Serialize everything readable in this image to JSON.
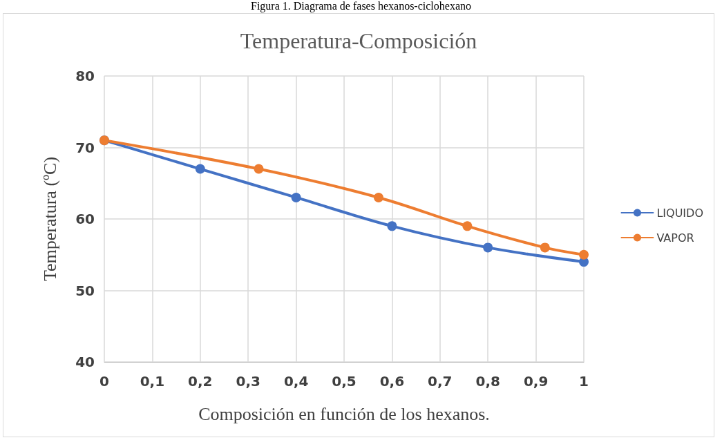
{
  "chart_data": {
    "type": "line",
    "title": "Temperatura-Composición",
    "xlabel": "Composición en función de los hexanos.",
    "ylabel": "Temperatura (ºC)",
    "annotations": [
      "Figura 1. Diagrama de fases hexanos-ciclohexano"
    ],
    "series": [
      {
        "name": "LIQUIDO",
        "color": "#4472c4",
        "x": [
          0,
          0.2,
          0.4,
          0.6,
          0.8,
          1
        ],
        "values": [
          71,
          67,
          63,
          59,
          56,
          54
        ]
      },
      {
        "name": "VAPOR",
        "color": "#ed7d31",
        "x": [
          0,
          0.322,
          0.572,
          0.757,
          0.919,
          1
        ],
        "values": [
          71,
          67,
          63,
          59,
          56,
          55
        ]
      }
    ],
    "xlim": [
      0,
      1
    ],
    "xticks": [
      {
        "value": 0,
        "label": "0"
      },
      {
        "value": 0.1,
        "label": "0,1"
      },
      {
        "value": 0.2,
        "label": "0,2"
      },
      {
        "value": 0.3,
        "label": "0,3"
      },
      {
        "value": 0.4,
        "label": "0,4"
      },
      {
        "value": 0.5,
        "label": "0,5"
      },
      {
        "value": 0.6,
        "label": "0,6"
      },
      {
        "value": 0.7,
        "label": "0,7"
      },
      {
        "value": 0.8,
        "label": "0,8"
      },
      {
        "value": 0.9,
        "label": "0,9"
      },
      {
        "value": 1,
        "label": "1"
      }
    ],
    "ylim": [
      40,
      80
    ],
    "yticks": [
      40,
      50,
      60,
      70,
      80
    ],
    "grid": true,
    "legend": "right",
    "marker": "circle",
    "line_style": "solid"
  }
}
